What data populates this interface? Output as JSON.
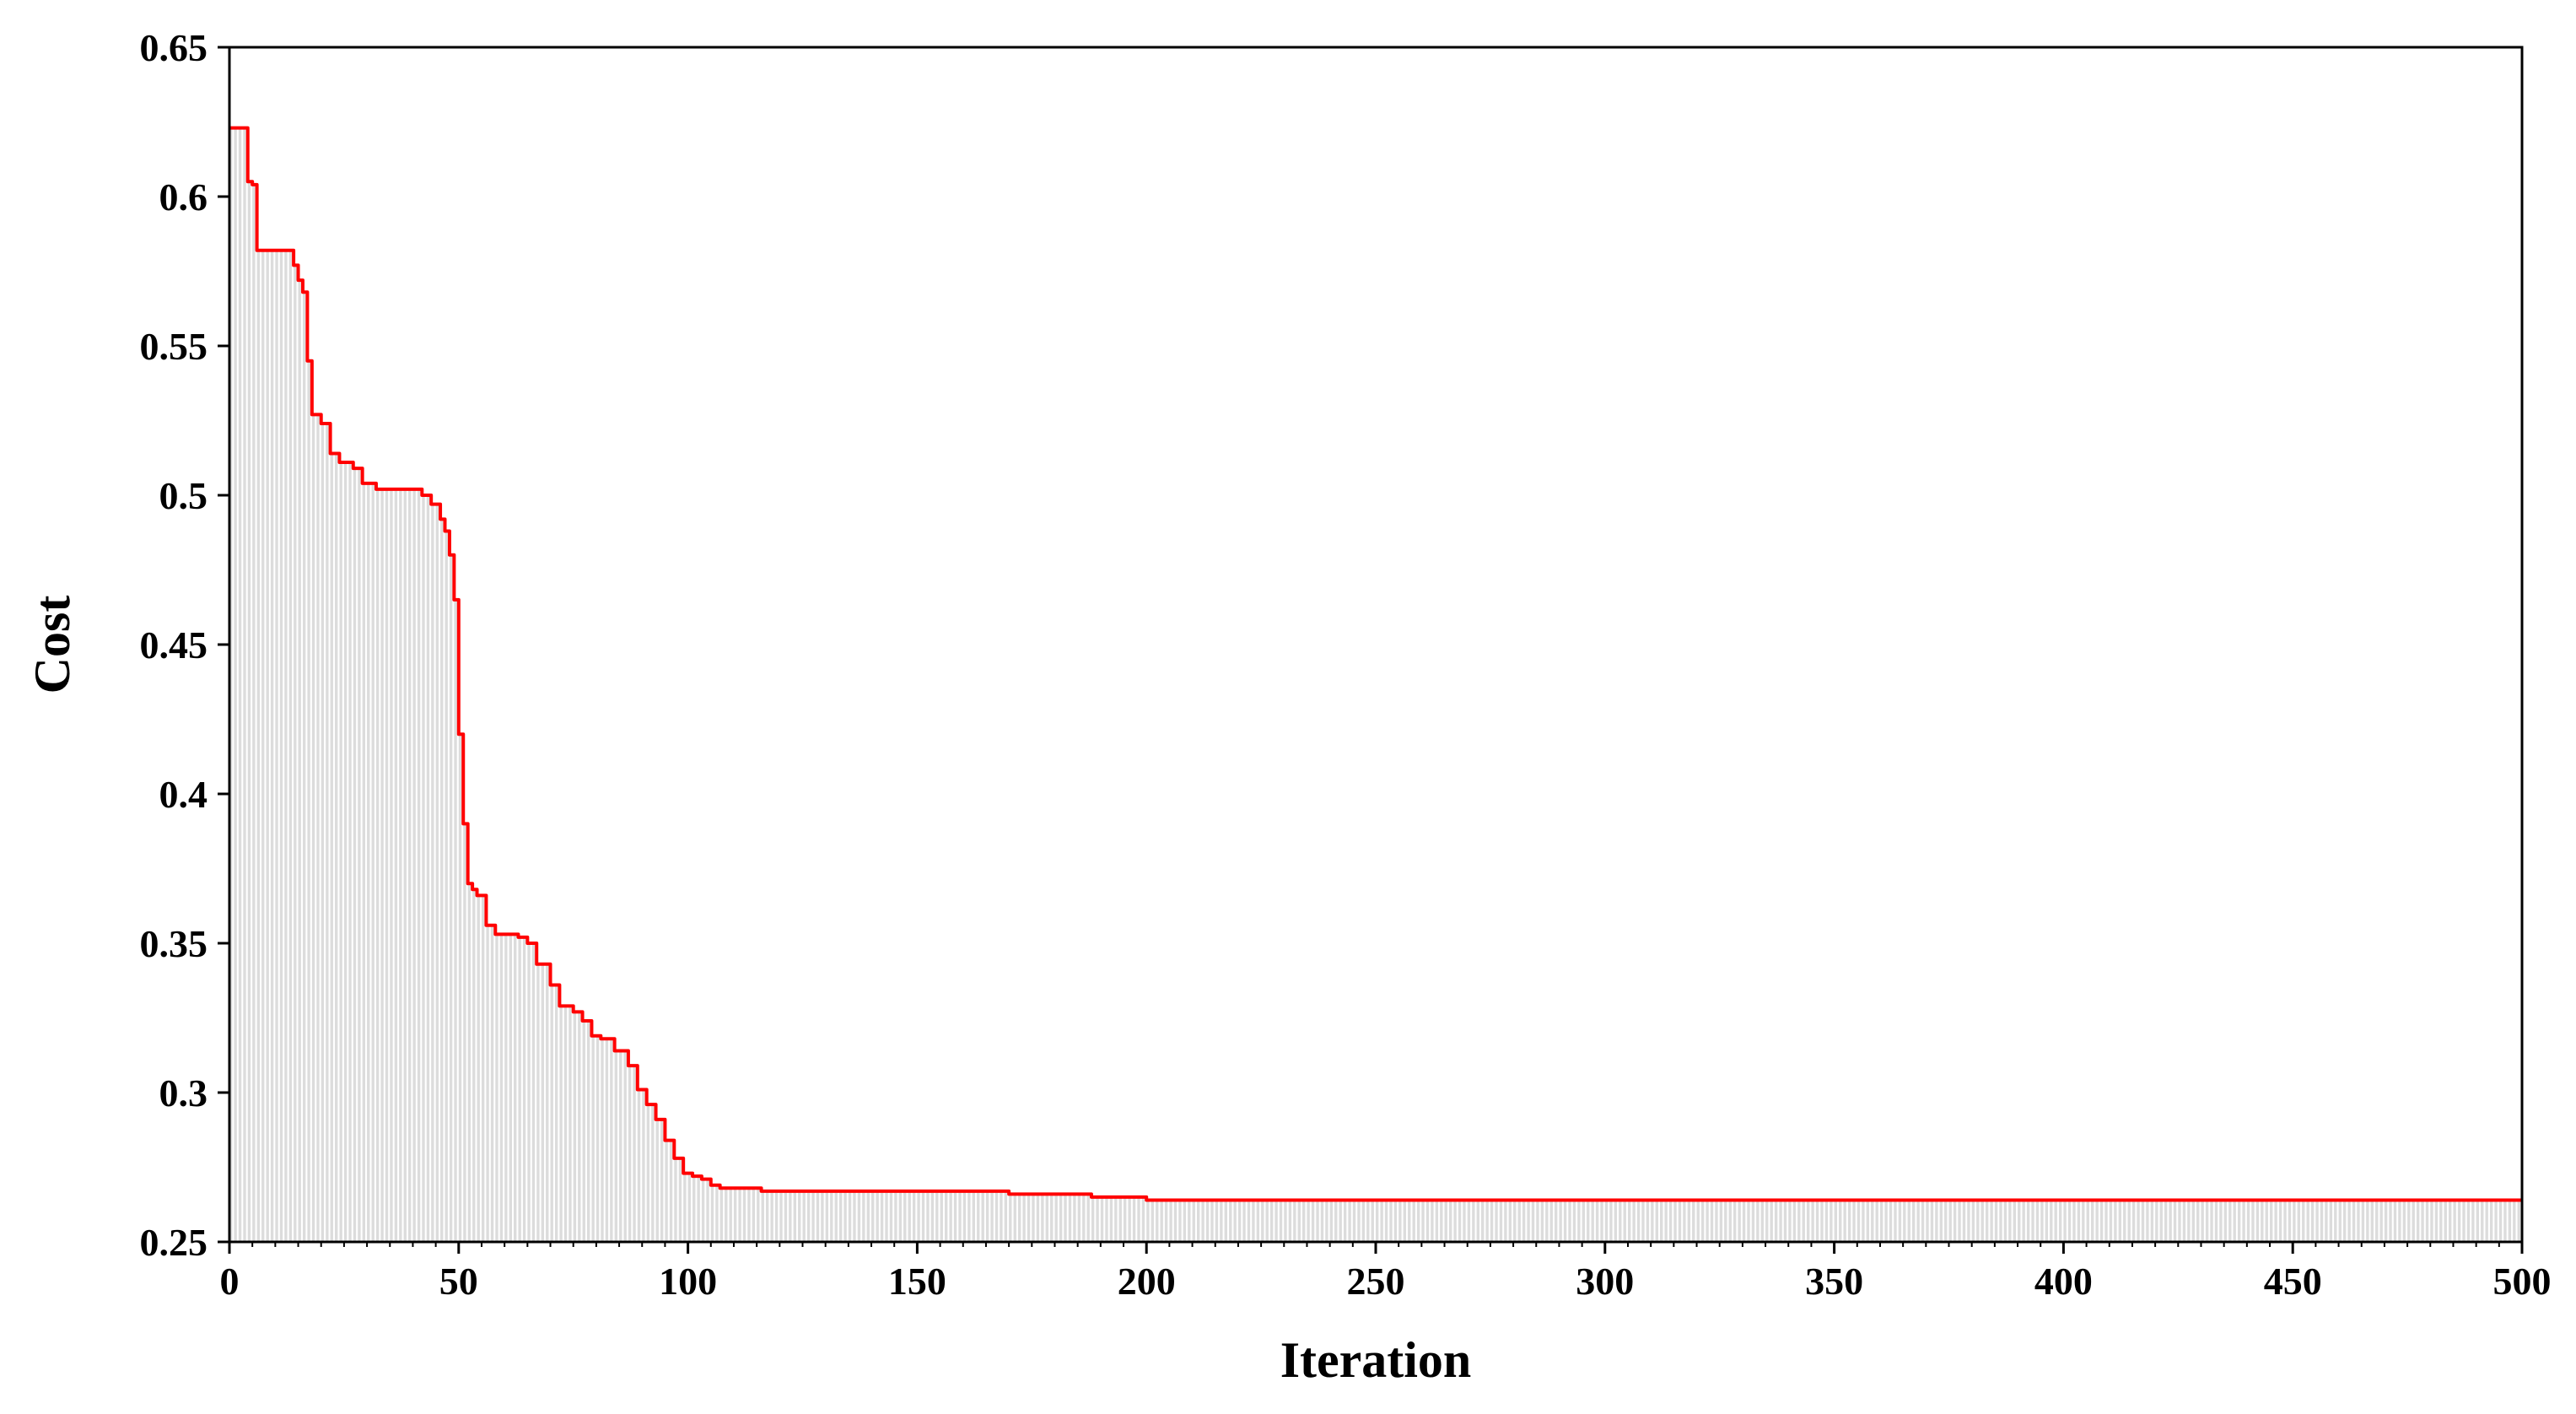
{
  "chart_data": {
    "type": "area",
    "xlabel": "Iteration",
    "ylabel": "Cost",
    "xlim": [
      0,
      500
    ],
    "ylim": [
      0.25,
      0.65
    ],
    "xticks": [
      0,
      50,
      100,
      150,
      200,
      250,
      300,
      350,
      400,
      450,
      500
    ],
    "xtick_labels": [
      "0",
      "50",
      "100",
      "150",
      "200",
      "250",
      "300",
      "350",
      "400",
      "450",
      "500"
    ],
    "yticks": [
      0.25,
      0.3,
      0.35,
      0.4,
      0.45,
      0.5,
      0.55,
      0.6,
      0.65
    ],
    "ytick_labels": [
      "0.25",
      "0.3",
      "0.35",
      "0.4",
      "0.45",
      "0.5",
      "0.55",
      "0.6",
      "0.65"
    ],
    "grid": false,
    "legend": "none",
    "series": [
      {
        "line_color": "#ff0000",
        "fill_color": "#dcdcdc",
        "x": [
          0,
          3,
          4,
          5,
          6,
          13,
          14,
          15,
          16,
          17,
          18,
          20,
          22,
          24,
          27,
          29,
          32,
          36,
          40,
          42,
          44,
          46,
          47,
          48,
          49,
          50,
          51,
          52,
          53,
          54,
          56,
          58,
          60,
          63,
          65,
          67,
          70,
          72,
          75,
          77,
          79,
          81,
          84,
          87,
          89,
          91,
          93,
          95,
          97,
          99,
          101,
          103,
          105,
          107,
          111,
          113,
          116,
          118,
          124,
          131,
          143,
          163,
          170,
          178,
          188,
          193,
          200,
          220,
          260,
          300,
          360,
          420,
          470,
          500
        ],
        "y": [
          0.623,
          0.623,
          0.605,
          0.604,
          0.582,
          0.582,
          0.577,
          0.572,
          0.568,
          0.545,
          0.527,
          0.524,
          0.514,
          0.511,
          0.509,
          0.504,
          0.502,
          0.502,
          0.502,
          0.5,
          0.497,
          0.492,
          0.488,
          0.48,
          0.465,
          0.42,
          0.39,
          0.37,
          0.368,
          0.366,
          0.356,
          0.353,
          0.353,
          0.352,
          0.35,
          0.343,
          0.336,
          0.329,
          0.327,
          0.324,
          0.319,
          0.318,
          0.314,
          0.309,
          0.301,
          0.296,
          0.291,
          0.284,
          0.278,
          0.273,
          0.272,
          0.271,
          0.269,
          0.268,
          0.268,
          0.268,
          0.267,
          0.267,
          0.267,
          0.267,
          0.267,
          0.267,
          0.266,
          0.266,
          0.265,
          0.265,
          0.264,
          0.264,
          0.264,
          0.264,
          0.264,
          0.264,
          0.264,
          0.264
        ]
      }
    ]
  }
}
